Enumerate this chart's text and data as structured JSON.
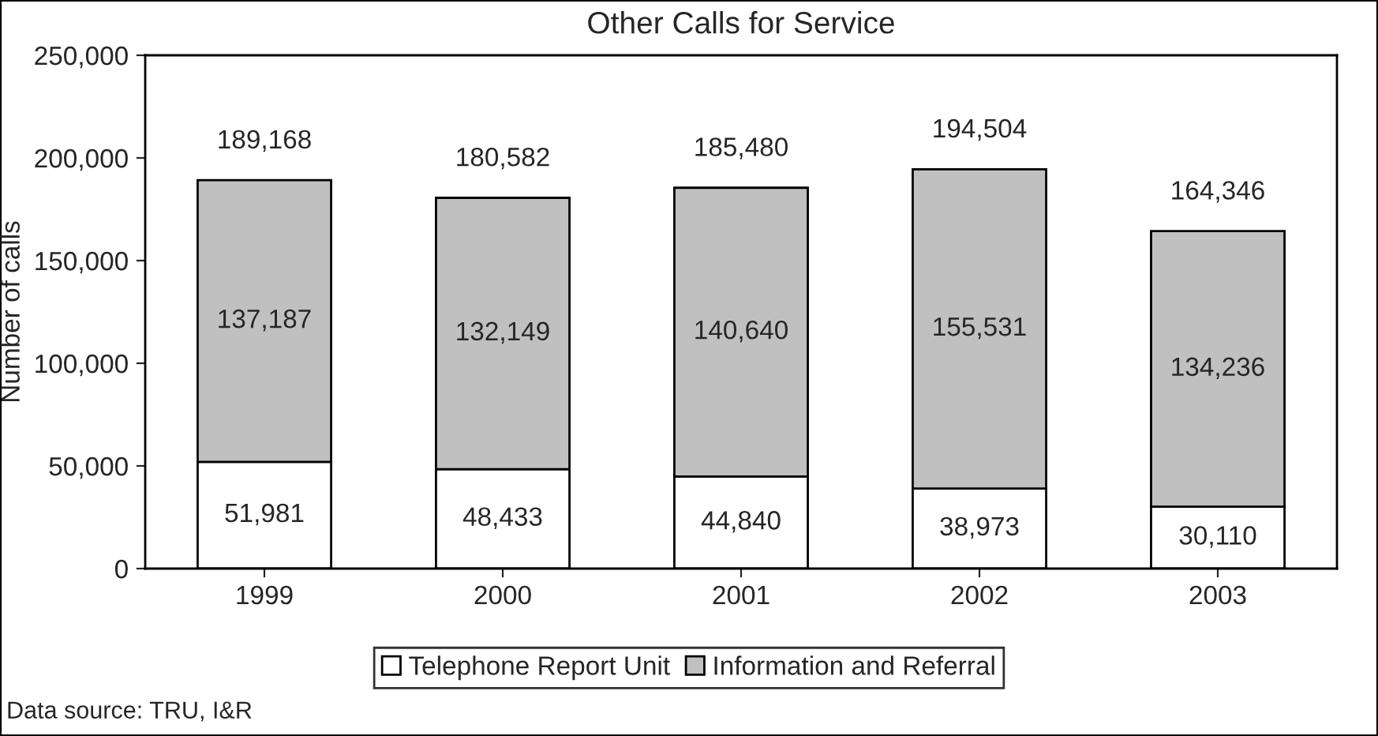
{
  "chart_data": {
    "type": "bar",
    "title": "Other Calls for Service",
    "ylabel": "Number of calls",
    "stacked": true,
    "categories": [
      "1999",
      "2000",
      "2001",
      "2002",
      "2003"
    ],
    "series": [
      {
        "name": "Telephone Report Unit",
        "color": "#ffffff",
        "values": [
          51981,
          48433,
          44840,
          38973,
          30110
        ],
        "value_labels": [
          "51,981",
          "48,433",
          "44,840",
          "38,973",
          "30,110"
        ]
      },
      {
        "name": "Information and Referral",
        "color": "#c0c0c0",
        "values": [
          137187,
          132149,
          140640,
          155531,
          134236
        ],
        "value_labels": [
          "137,187",
          "132,149",
          "140,640",
          "155,531",
          "134,236"
        ]
      }
    ],
    "totals": [
      "189,168",
      "180,582",
      "185,480",
      "194,504",
      "164,346"
    ],
    "ylim": [
      0,
      250000
    ],
    "yticks": [
      {
        "value": 0,
        "label": "0"
      },
      {
        "value": 50000,
        "label": "50,000"
      },
      {
        "value": 100000,
        "label": "100,000"
      },
      {
        "value": 150000,
        "label": "150,000"
      },
      {
        "value": 200000,
        "label": "200,000"
      },
      {
        "value": 250000,
        "label": "250,000"
      }
    ],
    "grid": false,
    "legend": "bottom",
    "annotations": [
      "Data source: TRU, I&R"
    ]
  }
}
